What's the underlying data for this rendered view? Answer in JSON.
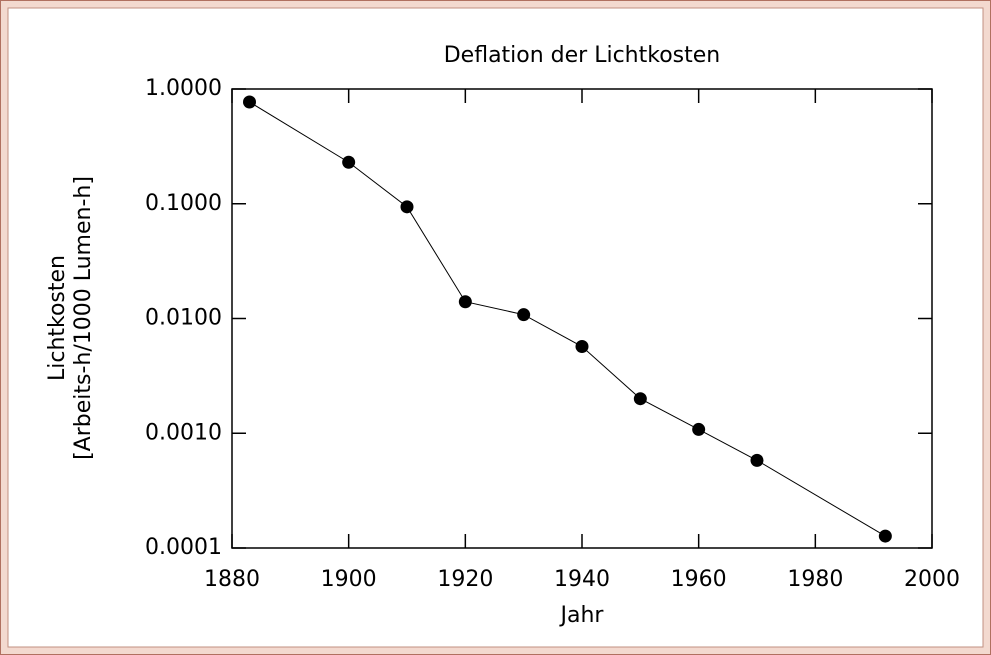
{
  "chart_data": {
    "type": "line",
    "title": "Deflation der Lichtkosten",
    "x_label": "Jahr",
    "y_label": [
      "Lichtkosten",
      "[Arbeits-h/1000 Lumen-h]"
    ],
    "x": [
      1883,
      1900,
      1910,
      1920,
      1930,
      1940,
      1950,
      1960,
      1970,
      1992
    ],
    "series": [
      {
        "name": "Lichtkosten",
        "color": "#000000",
        "values": [
          0.77,
          0.23,
          0.094,
          0.014,
          0.0108,
          0.0057,
          0.002,
          0.00108,
          0.00058,
          0.000127
        ]
      }
    ],
    "xlim": [
      1880,
      2000
    ],
    "xticks": [
      1880,
      1900,
      1920,
      1940,
      1960,
      1980,
      2000
    ],
    "ylim": [
      0.0001,
      1
    ],
    "yticks": [
      {
        "value": 1,
        "label": "1.0000"
      },
      {
        "value": 0.1,
        "label": "0.1000"
      },
      {
        "value": 0.01,
        "label": "0.0100"
      },
      {
        "value": 0.001,
        "label": "0.0010"
      },
      {
        "value": 0.0001,
        "label": "0.0001"
      }
    ],
    "log_y": true,
    "markers": true
  }
}
